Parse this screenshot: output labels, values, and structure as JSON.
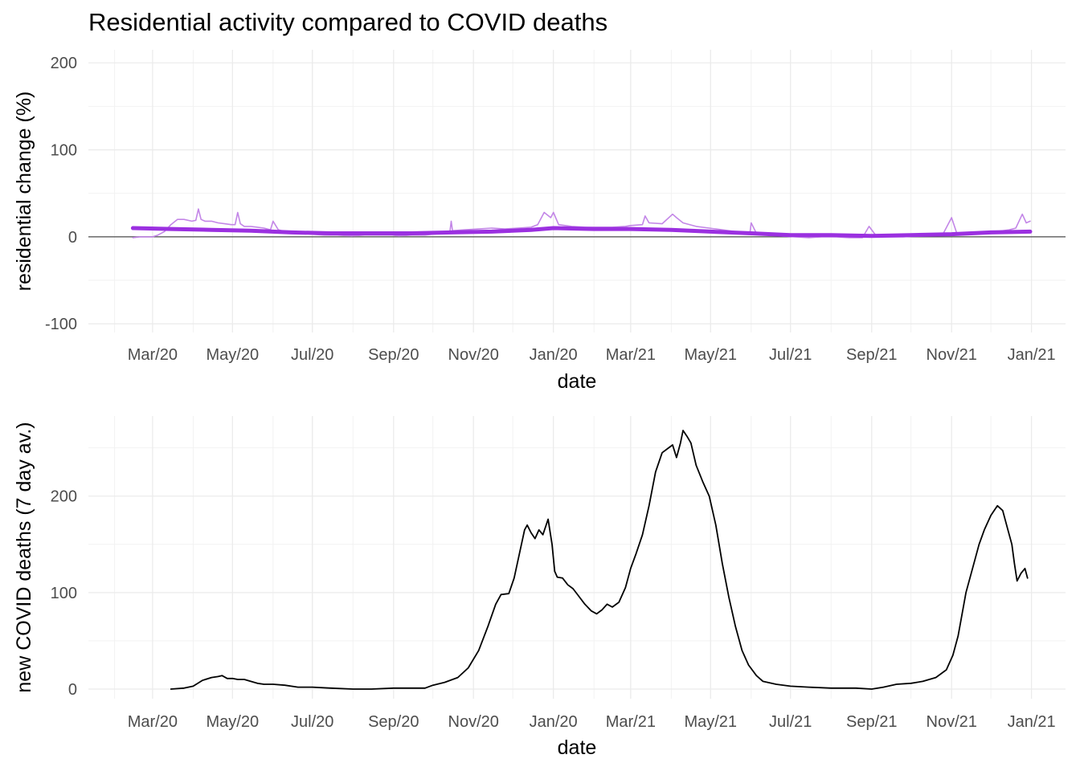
{
  "title": "Residential activity compared to COVID deaths",
  "chart_data": [
    {
      "type": "line",
      "title": "Residential activity compared to COVID deaths",
      "xlabel": "date",
      "ylabel": "residential change (%)",
      "x_ticks": [
        "Mar/20",
        "May/20",
        "Jul/20",
        "Sep/20",
        "Nov/20",
        "Jan/20",
        "Mar/21",
        "May/21",
        "Jul/21",
        "Sep/21",
        "Nov/21",
        "Jan/21"
      ],
      "y_ticks": [
        -100,
        0,
        100,
        200
      ],
      "ylim": [
        -110,
        215
      ],
      "grid": true,
      "zero_line": true,
      "series": [
        {
          "color": "#c080e6",
          "kind": "raw daily",
          "points": [
            [
              "2020-02-15",
              -1
            ],
            [
              "2020-02-20",
              0
            ],
            [
              "2020-02-25",
              0
            ],
            [
              "2020-03-01",
              0
            ],
            [
              "2020-03-05",
              2
            ],
            [
              "2020-03-10",
              6
            ],
            [
              "2020-03-15",
              14
            ],
            [
              "2020-03-20",
              20
            ],
            [
              "2020-03-25",
              20
            ],
            [
              "2020-03-31",
              18
            ],
            [
              "2020-04-03",
              19
            ],
            [
              "2020-04-05",
              32
            ],
            [
              "2020-04-07",
              20
            ],
            [
              "2020-04-10",
              18
            ],
            [
              "2020-04-15",
              18
            ],
            [
              "2020-04-20",
              16
            ],
            [
              "2020-04-25",
              15
            ],
            [
              "2020-04-30",
              14
            ],
            [
              "2020-05-03",
              14
            ],
            [
              "2020-05-05",
              28
            ],
            [
              "2020-05-07",
              15
            ],
            [
              "2020-05-10",
              12
            ],
            [
              "2020-05-15",
              12
            ],
            [
              "2020-05-20",
              11
            ],
            [
              "2020-05-25",
              10
            ],
            [
              "2020-05-30",
              8
            ],
            [
              "2020-06-01",
              18
            ],
            [
              "2020-06-05",
              8
            ],
            [
              "2020-06-10",
              6
            ],
            [
              "2020-06-15",
              5
            ],
            [
              "2020-06-20",
              4
            ],
            [
              "2020-06-25",
              4
            ],
            [
              "2020-06-30",
              3
            ],
            [
              "2020-07-10",
              2
            ],
            [
              "2020-07-20",
              2
            ],
            [
              "2020-07-31",
              1
            ],
            [
              "2020-08-10",
              2
            ],
            [
              "2020-08-20",
              2
            ],
            [
              "2020-08-31",
              2
            ],
            [
              "2020-09-05",
              1
            ],
            [
              "2020-09-15",
              2
            ],
            [
              "2020-09-25",
              2
            ],
            [
              "2020-10-01",
              3
            ],
            [
              "2020-10-10",
              4
            ],
            [
              "2020-10-14",
              6
            ],
            [
              "2020-10-15",
              18
            ],
            [
              "2020-10-16",
              7
            ],
            [
              "2020-10-25",
              8
            ],
            [
              "2020-11-05",
              9
            ],
            [
              "2020-11-15",
              10
            ],
            [
              "2020-11-25",
              9
            ],
            [
              "2020-12-05",
              10
            ],
            [
              "2020-12-15",
              11
            ],
            [
              "2020-12-20",
              14
            ],
            [
              "2020-12-25",
              28
            ],
            [
              "2020-12-30",
              22
            ],
            [
              "2021-01-01",
              28
            ],
            [
              "2021-01-05",
              14
            ],
            [
              "2021-01-15",
              12
            ],
            [
              "2021-01-25",
              11
            ],
            [
              "2021-02-05",
              11
            ],
            [
              "2021-02-15",
              11
            ],
            [
              "2021-02-25",
              12
            ],
            [
              "2021-03-01",
              13
            ],
            [
              "2021-03-10",
              14
            ],
            [
              "2021-03-12",
              24
            ],
            [
              "2021-03-15",
              16
            ],
            [
              "2021-03-25",
              15
            ],
            [
              "2021-04-02",
              26
            ],
            [
              "2021-04-05",
              22
            ],
            [
              "2021-04-10",
              16
            ],
            [
              "2021-04-20",
              12
            ],
            [
              "2021-04-30",
              10
            ],
            [
              "2021-05-10",
              8
            ],
            [
              "2021-05-20",
              6
            ],
            [
              "2021-05-31",
              4
            ],
            [
              "2021-06-01",
              16
            ],
            [
              "2021-06-05",
              4
            ],
            [
              "2021-06-15",
              2
            ],
            [
              "2021-06-25",
              1
            ],
            [
              "2021-07-05",
              0
            ],
            [
              "2021-07-15",
              -1
            ],
            [
              "2021-07-25",
              0
            ],
            [
              "2021-08-05",
              0
            ],
            [
              "2021-08-15",
              -1
            ],
            [
              "2021-08-25",
              -1
            ],
            [
              "2021-08-30",
              12
            ],
            [
              "2021-09-05",
              0
            ],
            [
              "2021-09-15",
              0
            ],
            [
              "2021-09-25",
              0
            ],
            [
              "2021-10-05",
              1
            ],
            [
              "2021-10-15",
              2
            ],
            [
              "2021-10-25",
              2
            ],
            [
              "2021-11-01",
              22
            ],
            [
              "2021-11-05",
              4
            ],
            [
              "2021-11-15",
              5
            ],
            [
              "2021-11-25",
              5
            ],
            [
              "2021-12-05",
              6
            ],
            [
              "2021-12-15",
              8
            ],
            [
              "2021-12-20",
              10
            ],
            [
              "2021-12-25",
              26
            ],
            [
              "2021-12-28",
              16
            ],
            [
              "2021-12-31",
              18
            ]
          ]
        },
        {
          "color": "#9b30e0",
          "kind": "trend",
          "points": [
            [
              "2020-02-15",
              10
            ],
            [
              "2020-03-15",
              9
            ],
            [
              "2020-04-15",
              8
            ],
            [
              "2020-05-15",
              7
            ],
            [
              "2020-06-15",
              5
            ],
            [
              "2020-07-15",
              4
            ],
            [
              "2020-08-15",
              4
            ],
            [
              "2020-09-15",
              4
            ],
            [
              "2020-10-15",
              5
            ],
            [
              "2020-11-15",
              6
            ],
            [
              "2020-12-15",
              8
            ],
            [
              "2021-01-01",
              10
            ],
            [
              "2021-02-01",
              9
            ],
            [
              "2021-03-01",
              9
            ],
            [
              "2021-04-01",
              8
            ],
            [
              "2021-05-01",
              6
            ],
            [
              "2021-06-01",
              4
            ],
            [
              "2021-07-01",
              2
            ],
            [
              "2021-08-01",
              2
            ],
            [
              "2021-09-01",
              1
            ],
            [
              "2021-10-01",
              2
            ],
            [
              "2021-11-01",
              3
            ],
            [
              "2021-12-01",
              5
            ],
            [
              "2021-12-31",
              6
            ]
          ]
        }
      ]
    },
    {
      "type": "line",
      "xlabel": "date",
      "ylabel": "new COVID deaths (7 day av.)",
      "x_ticks": [
        "Mar/20",
        "May/20",
        "Jul/20",
        "Sep/20",
        "Nov/20",
        "Jan/20",
        "Mar/21",
        "May/21",
        "Jul/21",
        "Sep/21",
        "Nov/21",
        "Jan/21"
      ],
      "y_ticks": [
        0,
        100,
        200
      ],
      "ylim": [
        -10,
        283
      ],
      "grid": true,
      "series": [
        {
          "color": "#000000",
          "points": [
            [
              "2020-03-15",
              0
            ],
            [
              "2020-03-25",
              1
            ],
            [
              "2020-04-01",
              3
            ],
            [
              "2020-04-08",
              9
            ],
            [
              "2020-04-15",
              12
            ],
            [
              "2020-04-20",
              13
            ],
            [
              "2020-04-23",
              14
            ],
            [
              "2020-04-27",
              11
            ],
            [
              "2020-05-01",
              11
            ],
            [
              "2020-05-05",
              10
            ],
            [
              "2020-05-10",
              10
            ],
            [
              "2020-05-15",
              8
            ],
            [
              "2020-05-20",
              6
            ],
            [
              "2020-05-25",
              5
            ],
            [
              "2020-06-01",
              5
            ],
            [
              "2020-06-10",
              4
            ],
            [
              "2020-06-20",
              2
            ],
            [
              "2020-07-01",
              2
            ],
            [
              "2020-07-15",
              1
            ],
            [
              "2020-08-01",
              0
            ],
            [
              "2020-08-15",
              0
            ],
            [
              "2020-09-01",
              1
            ],
            [
              "2020-09-15",
              1
            ],
            [
              "2020-09-25",
              1
            ],
            [
              "2020-10-01",
              4
            ],
            [
              "2020-10-10",
              7
            ],
            [
              "2020-10-20",
              12
            ],
            [
              "2020-10-28",
              22
            ],
            [
              "2020-11-05",
              40
            ],
            [
              "2020-11-12",
              65
            ],
            [
              "2020-11-18",
              88
            ],
            [
              "2020-11-22",
              98
            ],
            [
              "2020-11-28",
              99
            ],
            [
              "2020-12-02",
              115
            ],
            [
              "2020-12-06",
              140
            ],
            [
              "2020-12-10",
              165
            ],
            [
              "2020-12-12",
              170
            ],
            [
              "2020-12-15",
              162
            ],
            [
              "2020-12-18",
              156
            ],
            [
              "2020-12-21",
              165
            ],
            [
              "2020-12-24",
              160
            ],
            [
              "2020-12-28",
              176
            ],
            [
              "2020-12-31",
              150
            ],
            [
              "2021-01-02",
              122
            ],
            [
              "2021-01-04",
              116
            ],
            [
              "2021-01-08",
              115
            ],
            [
              "2021-01-12",
              108
            ],
            [
              "2021-01-16",
              104
            ],
            [
              "2021-01-20",
              97
            ],
            [
              "2021-01-25",
              88
            ],
            [
              "2021-01-30",
              81
            ],
            [
              "2021-02-03",
              78
            ],
            [
              "2021-02-07",
              82
            ],
            [
              "2021-02-11",
              88
            ],
            [
              "2021-02-15",
              85
            ],
            [
              "2021-02-20",
              90
            ],
            [
              "2021-02-25",
              105
            ],
            [
              "2021-03-01",
              125
            ],
            [
              "2021-03-05",
              140
            ],
            [
              "2021-03-10",
              160
            ],
            [
              "2021-03-15",
              190
            ],
            [
              "2021-03-20",
              225
            ],
            [
              "2021-03-25",
              245
            ],
            [
              "2021-03-30",
              250
            ],
            [
              "2021-04-02",
              253
            ],
            [
              "2021-04-05",
              240
            ],
            [
              "2021-04-08",
              255
            ],
            [
              "2021-04-10",
              268
            ],
            [
              "2021-04-13",
              262
            ],
            [
              "2021-04-16",
              255
            ],
            [
              "2021-04-20",
              232
            ],
            [
              "2021-04-25",
              215
            ],
            [
              "2021-04-30",
              200
            ],
            [
              "2021-05-05",
              170
            ],
            [
              "2021-05-10",
              130
            ],
            [
              "2021-05-15",
              95
            ],
            [
              "2021-05-20",
              65
            ],
            [
              "2021-05-25",
              40
            ],
            [
              "2021-05-30",
              25
            ],
            [
              "2021-06-05",
              14
            ],
            [
              "2021-06-10",
              8
            ],
            [
              "2021-06-20",
              5
            ],
            [
              "2021-07-01",
              3
            ],
            [
              "2021-07-15",
              2
            ],
            [
              "2021-08-01",
              1
            ],
            [
              "2021-08-20",
              1
            ],
            [
              "2021-09-01",
              0
            ],
            [
              "2021-09-10",
              2
            ],
            [
              "2021-09-20",
              5
            ],
            [
              "2021-10-01",
              6
            ],
            [
              "2021-10-10",
              8
            ],
            [
              "2021-10-20",
              12
            ],
            [
              "2021-10-28",
              20
            ],
            [
              "2021-11-02",
              35
            ],
            [
              "2021-11-06",
              55
            ],
            [
              "2021-11-12",
              100
            ],
            [
              "2021-11-18",
              130
            ],
            [
              "2021-11-22",
              150
            ],
            [
              "2021-11-26",
              165
            ],
            [
              "2021-12-01",
              180
            ],
            [
              "2021-12-06",
              190
            ],
            [
              "2021-12-10",
              185
            ],
            [
              "2021-12-14",
              165
            ],
            [
              "2021-12-17",
              150
            ],
            [
              "2021-12-19",
              130
            ],
            [
              "2021-12-21",
              112
            ],
            [
              "2021-12-24",
              120
            ],
            [
              "2021-12-27",
              125
            ],
            [
              "2021-12-29",
              115
            ]
          ]
        }
      ]
    }
  ]
}
